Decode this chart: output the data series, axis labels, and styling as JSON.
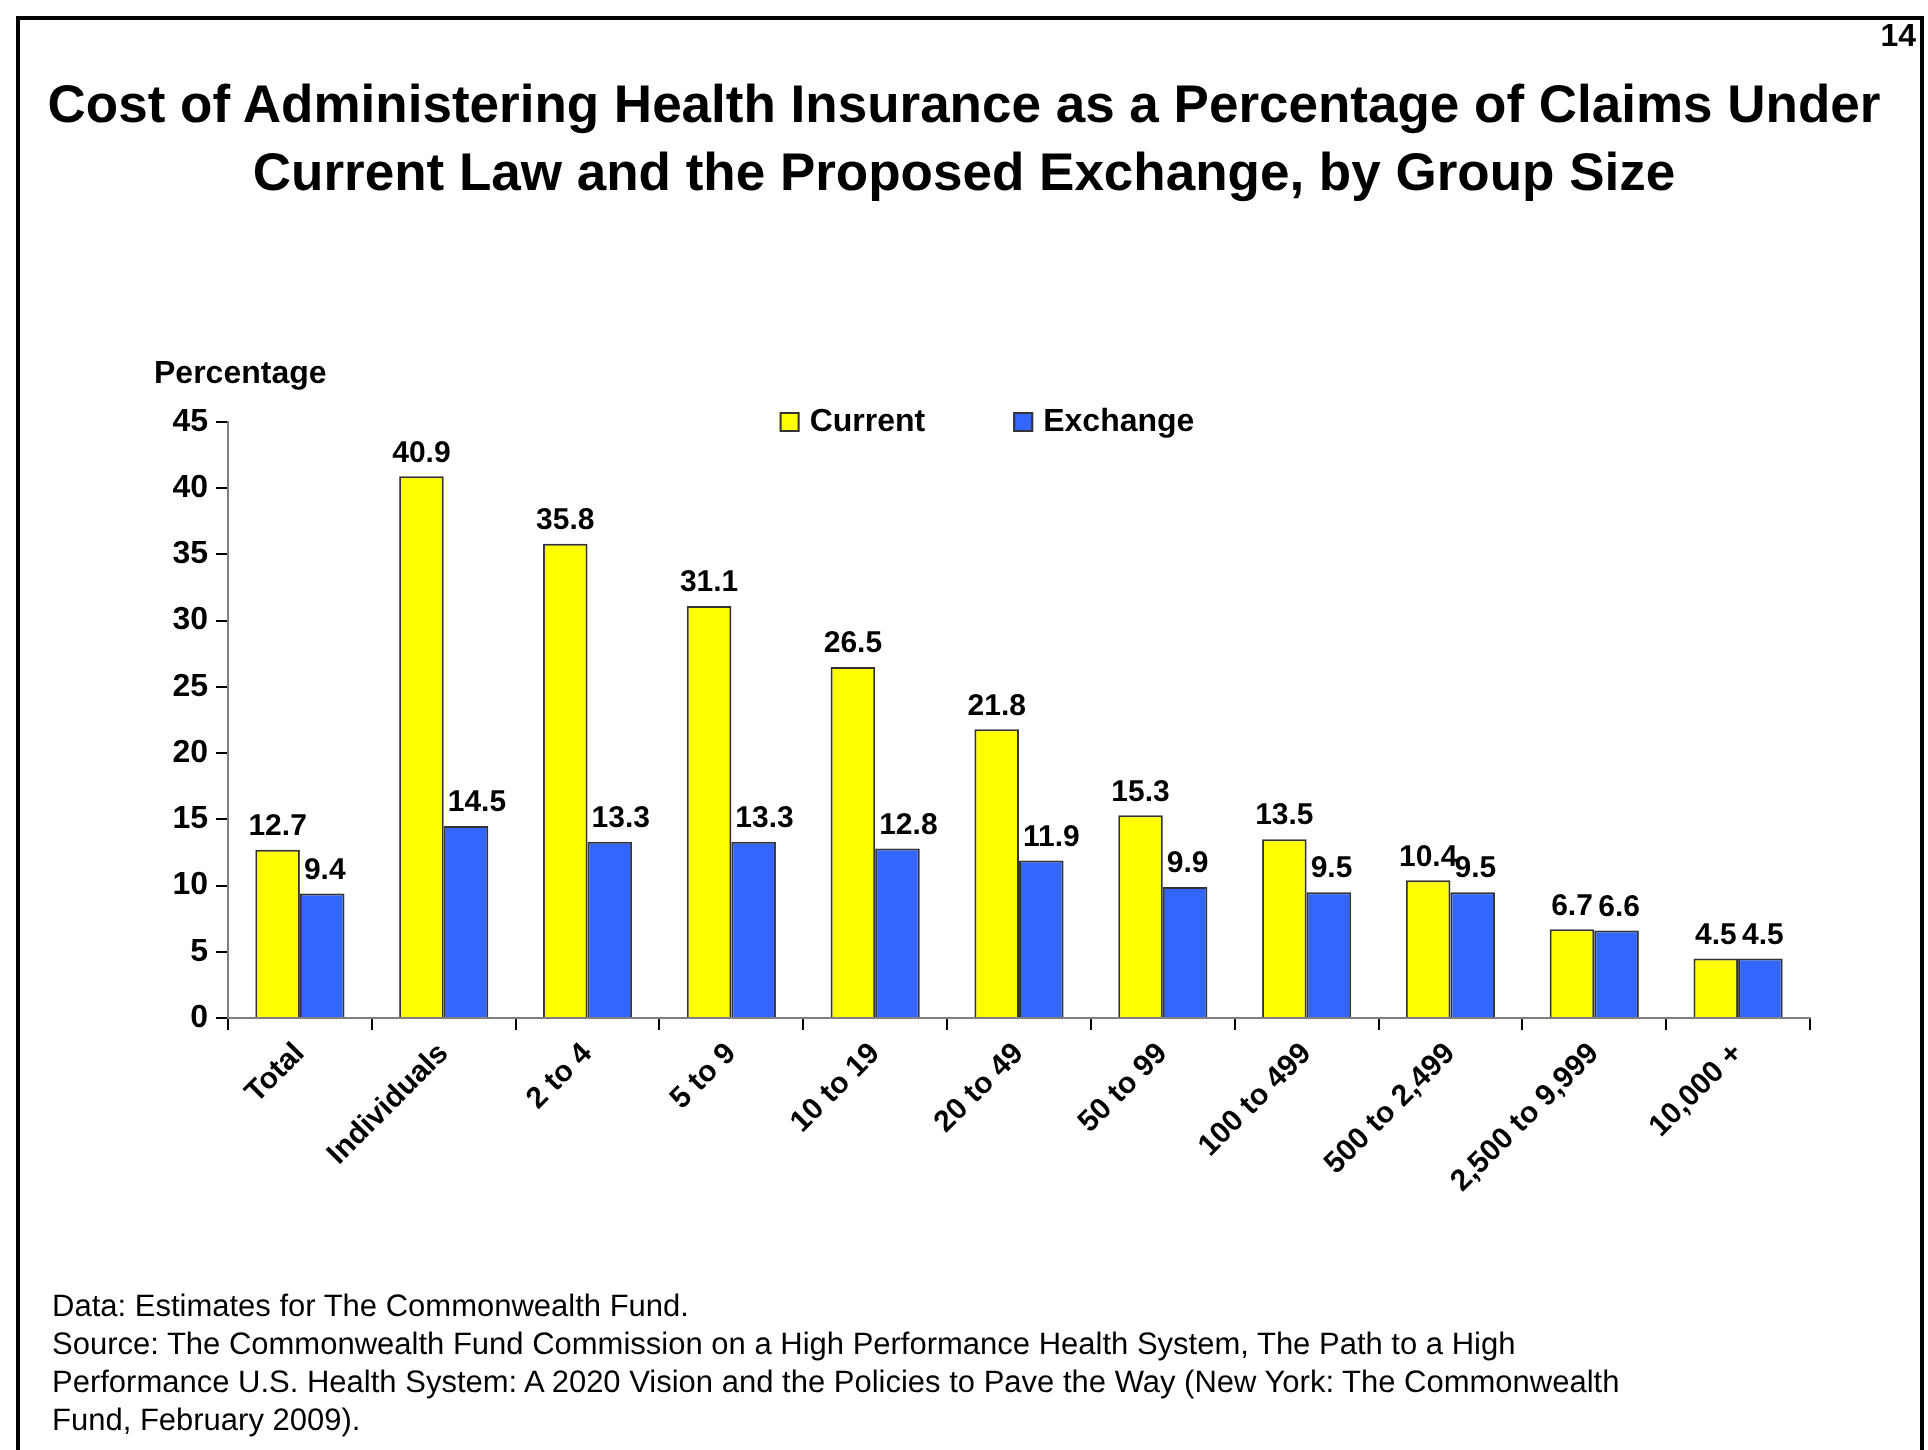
{
  "chart_data": {
    "type": "bar",
    "title": "Cost of Administering Health Insurance as a Percentage of Claims Under Current Law and the Proposed Exchange, by Group Size",
    "ylabel": "Percentage",
    "categories": [
      "Total",
      "Individuals",
      "2 to 4",
      "5 to 9",
      "10 to 19",
      "20 to 49",
      "50 to 99",
      "100 to 499",
      "500 to 2,499",
      "2,500 to 9,999",
      "10,000 +"
    ],
    "series": [
      {
        "name": "Current",
        "color": "#ffff00",
        "values": [
          12.7,
          40.9,
          35.8,
          31.1,
          26.5,
          21.8,
          15.3,
          13.5,
          10.4,
          6.7,
          4.5
        ]
      },
      {
        "name": "Exchange",
        "color": "#3366ff",
        "values": [
          9.4,
          14.5,
          13.3,
          13.3,
          12.8,
          11.9,
          9.9,
          9.5,
          9.5,
          6.6,
          4.5
        ]
      }
    ],
    "ylim": [
      0,
      45
    ],
    "yticks": [
      0,
      5,
      10,
      15,
      20,
      25,
      30,
      35,
      40,
      45
    ],
    "legend": "top",
    "data_labels": true,
    "annotations": [
      "14",
      "Data: Estimates for The Commonwealth Fund.",
      "Source: The Commonwealth Fund Commission on a High Performance Health System, The Path to a High Performance U.S. Health System: A 2020 Vision and the Policies to Pave the Way (New York: The Commonwealth Fund, February 2009)."
    ]
  }
}
